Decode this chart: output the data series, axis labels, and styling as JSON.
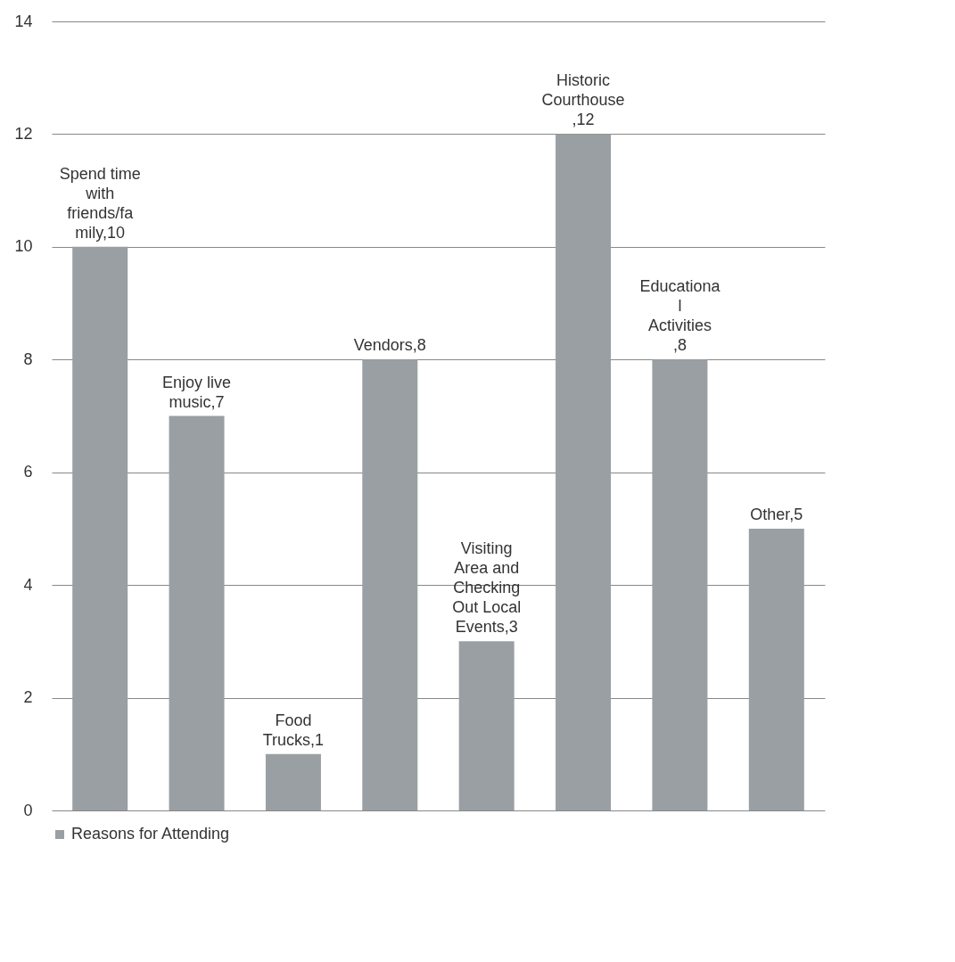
{
  "chart_data": {
    "type": "bar",
    "categories": [
      null,
      null,
      null,
      null,
      null,
      null,
      null,
      null
    ],
    "series": [
      {
        "name": "Reasons for Attending",
        "color": "#9a9fa3",
        "values": [
          10,
          7,
          1,
          8,
          3,
          12,
          8,
          5
        ]
      }
    ],
    "value_labels": [
      "Spend time with friends/family,10",
      "Enjoy live music,7",
      "Food Trucks,1",
      "Vendors,8",
      "Visiting Area and Checking Out Local Events,3",
      "Historic Courthouse,12",
      "Educational Activities,8",
      "Other,5"
    ],
    "ylim": [
      0,
      14
    ],
    "yticks": [
      0,
      2,
      4,
      6,
      8,
      10,
      12,
      14
    ],
    "grid": "y",
    "legend": "bottom"
  }
}
